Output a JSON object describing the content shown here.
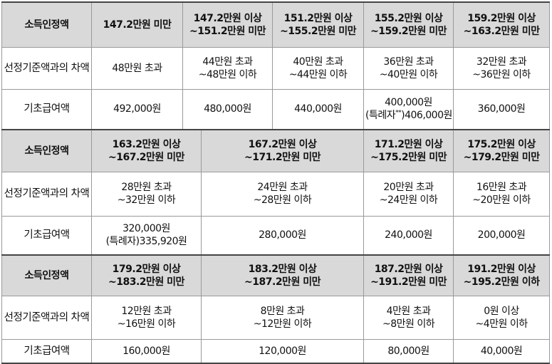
{
  "table": {
    "row_labels": {
      "income": "소득인정액",
      "diff": "선정기준액과의 차액",
      "benefit": "기초급여액"
    },
    "block1": {
      "headers": [
        [
          "147.2만원 미만"
        ],
        [
          "147.2만원 이상",
          "~151.2만원 미만"
        ],
        [
          "151.2만원 이상",
          "~155.2만원 미만"
        ],
        [
          "155.2만원 이상",
          "~159.2만원 미만"
        ],
        [
          "159.2만원 이상",
          "~163.2만원 미만"
        ]
      ],
      "diffs": [
        [
          "48만원 초과"
        ],
        [
          "44만원 초과",
          "~48만원 이하"
        ],
        [
          "40만원 초과",
          "~44만원 이하"
        ],
        [
          "36만원 초과",
          "~40만원 이하"
        ],
        [
          "32만원 초과",
          "~36만원 이하"
        ]
      ],
      "benefits": [
        "492,000원",
        "480,000원",
        "440,000원",
        "400,000원",
        "360,000원"
      ],
      "special_note": {
        "prefix": "(특례자",
        "mark": "**",
        "suffix": ")406,000원"
      }
    },
    "block2": {
      "headers": [
        [
          "163.2만원 이상",
          "~167.2만원 미만"
        ],
        [
          "167.2만원 이상",
          "~171.2만원 미만"
        ],
        [
          "171.2만원 이상",
          "~175.2만원 미만"
        ],
        [
          "175.2만원 이상",
          "~179.2만원 미만"
        ]
      ],
      "diffs": [
        [
          "28만원 초과",
          "~32만원 이하"
        ],
        [
          "24만원 초과",
          "~28만원 이하"
        ],
        [
          "20만원 초과",
          "~24만원 이하"
        ],
        [
          "16만원 초과",
          "~20만원 이하"
        ]
      ],
      "benefits": [
        "320,000원",
        "280,000원",
        "240,000원",
        "200,000원"
      ],
      "special_note": "(특례자)335,920원"
    },
    "block3": {
      "headers": [
        [
          "179.2만원 이상",
          "~183.2만원 미만"
        ],
        [
          "183.2만원 이상",
          "~187.2만원 미만"
        ],
        [
          "187.2만원 이상",
          "~191.2만원 미만"
        ],
        [
          "191.2만원 이상",
          "~195.2만원 이하"
        ]
      ],
      "diffs": [
        [
          "12만원 초과",
          "~16만원 이하"
        ],
        [
          "8만원 초과",
          "~12만원 이하"
        ],
        [
          "4만원 초과",
          "~8만원 이하"
        ],
        [
          "0원 이상",
          "~4만원 이하"
        ]
      ],
      "benefits": [
        "160,000원",
        "120,000원",
        "80,000원",
        "40,000원"
      ]
    }
  }
}
